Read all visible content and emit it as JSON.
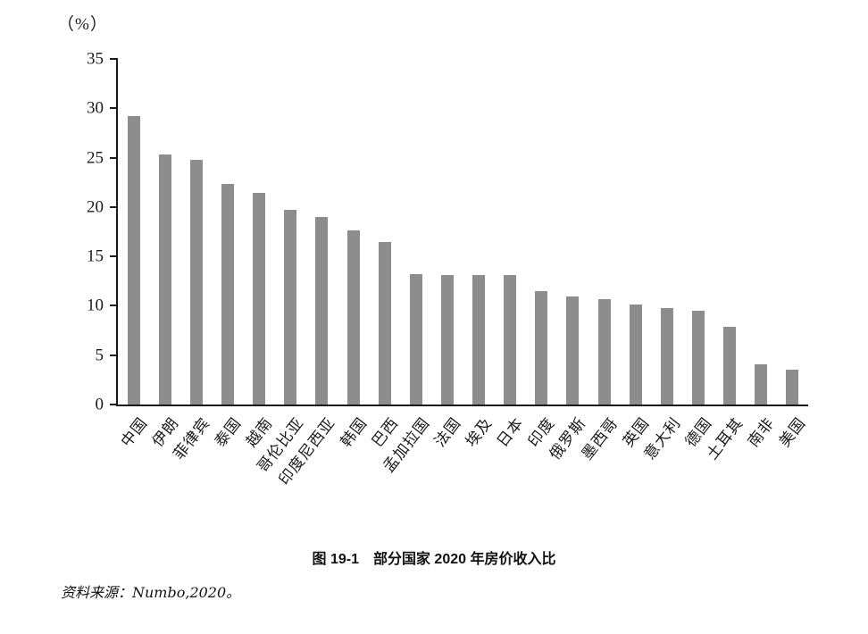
{
  "chart_data": {
    "type": "bar",
    "title": "图 19-1　部分国家 2020 年房价收入比",
    "unit_label": "（%）",
    "categories": [
      "中国",
      "伊朗",
      "菲律宾",
      "泰国",
      "越南",
      "哥伦比亚",
      "印度尼西亚",
      "韩国",
      "巴西",
      "孟加拉国",
      "法国",
      "埃及",
      "日本",
      "印度",
      "俄罗斯",
      "墨西哥",
      "英国",
      "意大利",
      "德国",
      "土耳其",
      "南非",
      "美国"
    ],
    "values": [
      29.2,
      25.3,
      24.8,
      22.3,
      21.4,
      19.7,
      19.0,
      17.6,
      16.5,
      13.2,
      13.1,
      13.1,
      13.1,
      11.5,
      10.9,
      10.7,
      10.1,
      9.8,
      9.5,
      7.9,
      4.1,
      3.5
    ],
    "ylim": [
      0,
      35
    ],
    "yticks": [
      0,
      5,
      10,
      15,
      20,
      25,
      30,
      35
    ],
    "bar_color": "#8d8d8d",
    "axis_color": "#1a1a1a",
    "grid": false,
    "legend": false,
    "xlabel": "",
    "ylabel": "（%）"
  },
  "source_note": "资料来源：Numbo,2020。"
}
